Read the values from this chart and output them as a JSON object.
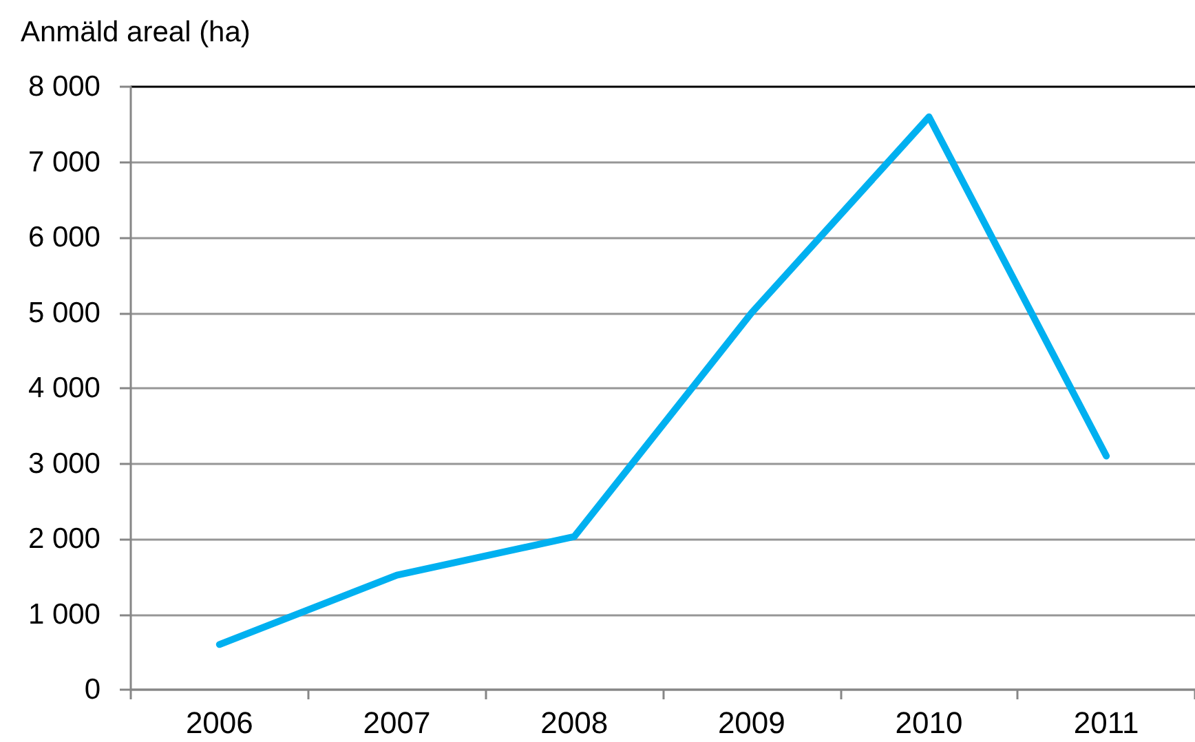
{
  "chart_data": {
    "type": "line",
    "ylabel": "Anmäld areal (ha)",
    "categories": [
      "2006",
      "2007",
      "2008",
      "2009",
      "2010",
      "2011"
    ],
    "values": [
      600,
      1520,
      2030,
      5000,
      7600,
      3100
    ],
    "color": "#00b0f0",
    "ylim": [
      0,
      8000
    ],
    "yticks": [
      0,
      {
        "value": 1000,
        "label": "1 000"
      },
      {
        "value": 2000,
        "label": "2 000"
      },
      {
        "value": 3000,
        "label": "3 000"
      },
      {
        "value": 4000,
        "label": "4 000"
      },
      {
        "value": 5000,
        "label": "5 000"
      },
      {
        "value": 6000,
        "label": "6 000"
      },
      {
        "value": 7000,
        "label": "7 000"
      },
      {
        "value": 8000,
        "label": "8 000"
      }
    ],
    "grid": "y"
  }
}
